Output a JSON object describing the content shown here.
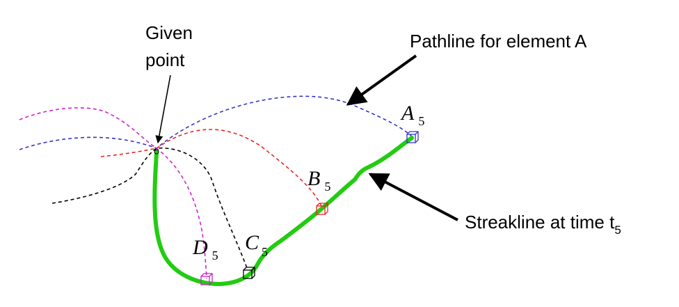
{
  "labels": {
    "given_point_line1": "Given",
    "given_point_line2": "point",
    "pathline_label": "Pathline for element A",
    "streakline_label": "Streakline at time t",
    "streakline_subscript": "5"
  },
  "elements": [
    {
      "letter": "A",
      "subscript": "5",
      "color": "#3333cc"
    },
    {
      "letter": "B",
      "subscript": "5",
      "color": "#ee2222"
    },
    {
      "letter": "C",
      "subscript": "5",
      "color": "#000000"
    },
    {
      "letter": "D",
      "subscript": "5",
      "color": "#cc22cc"
    }
  ],
  "colors": {
    "streakline": "#22cc11",
    "pathline_A": "#3333cc",
    "pathline_B": "#ee2222",
    "pathline_C": "#000000",
    "pathline_D": "#cc22cc",
    "arrows": "#000000"
  }
}
